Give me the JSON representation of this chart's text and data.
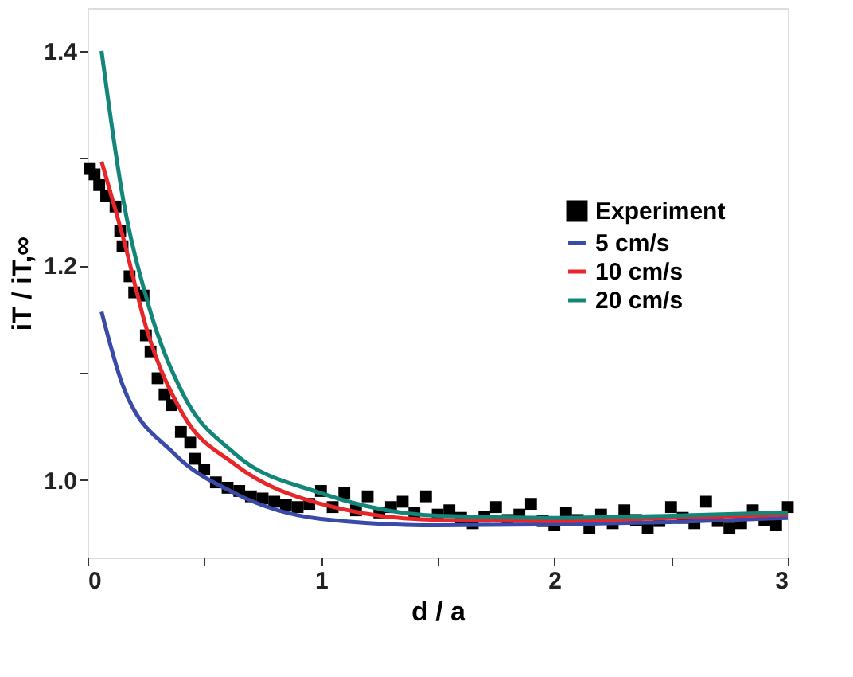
{
  "chart_data": {
    "type": "scatter",
    "xlabel": "d / a",
    "ylabel": "iT / iT,∞",
    "xlim": [
      0,
      3
    ],
    "ylim": [
      0.928,
      1.44
    ],
    "xticks": [
      0,
      {
        "value": 0.5,
        "label": null
      },
      1,
      {
        "value": 1.5,
        "label": null
      },
      2,
      {
        "value": 2.5,
        "label": null
      },
      3
    ],
    "yticks": [
      {
        "value": 1.0,
        "label": "1.0"
      },
      {
        "value": 1.1,
        "label": null
      },
      {
        "value": 1.2,
        "label": "1.2"
      },
      {
        "value": 1.3,
        "label": null
      },
      {
        "value": 1.4,
        "label": "1.4"
      }
    ],
    "grid": false,
    "legend": "right",
    "series": [
      {
        "name": "Experiment",
        "type": "scatter",
        "marker": "square",
        "color": "#000000",
        "x": [
          0.01,
          0.03,
          0.05,
          0.08,
          0.12,
          0.14,
          0.15,
          0.18,
          0.2,
          0.24,
          0.25,
          0.27,
          0.3,
          0.33,
          0.36,
          0.4,
          0.44,
          0.46,
          0.5,
          0.55,
          0.6,
          0.65,
          0.7,
          0.75,
          0.8,
          0.85,
          0.9,
          0.95,
          1.0,
          1.05,
          1.1,
          1.15,
          1.2,
          1.25,
          1.3,
          1.35,
          1.4,
          1.45,
          1.5,
          1.55,
          1.6,
          1.65,
          1.7,
          1.75,
          1.8,
          1.85,
          1.9,
          1.95,
          2.0,
          2.05,
          2.1,
          2.15,
          2.2,
          2.25,
          2.3,
          2.35,
          2.4,
          2.45,
          2.5,
          2.55,
          2.6,
          2.65,
          2.7,
          2.75,
          2.8,
          2.85,
          2.9,
          2.95,
          3.0
        ],
        "values": [
          1.29,
          1.285,
          1.275,
          1.265,
          1.255,
          1.232,
          1.218,
          1.19,
          1.175,
          1.172,
          1.135,
          1.12,
          1.095,
          1.08,
          1.07,
          1.045,
          1.035,
          1.02,
          1.01,
          0.998,
          0.993,
          0.99,
          0.985,
          0.983,
          0.98,
          0.977,
          0.975,
          0.978,
          0.99,
          0.975,
          0.988,
          0.972,
          0.985,
          0.97,
          0.975,
          0.98,
          0.97,
          0.985,
          0.968,
          0.972,
          0.965,
          0.96,
          0.966,
          0.975,
          0.963,
          0.968,
          0.978,
          0.962,
          0.958,
          0.97,
          0.963,
          0.955,
          0.968,
          0.96,
          0.972,
          0.963,
          0.955,
          0.962,
          0.975,
          0.965,
          0.96,
          0.98,
          0.962,
          0.955,
          0.96,
          0.972,
          0.963,
          0.958,
          0.975
        ]
      },
      {
        "name": "5 cm/s",
        "type": "line",
        "color": "#3a4aa8",
        "x": [
          0.06,
          0.15,
          0.37,
          0.63,
          1.0,
          1.5,
          2.0,
          2.5,
          3.0
        ],
        "values": [
          1.157,
          1.089,
          1.025,
          0.988,
          0.964,
          0.958,
          0.959,
          0.961,
          0.965
        ]
      },
      {
        "name": "10 cm/s",
        "type": "line",
        "color": "#e8262a",
        "x": [
          0.06,
          0.15,
          0.26,
          0.41,
          0.63,
          1.0,
          1.5,
          2.0,
          2.5,
          3.0
        ],
        "values": [
          1.297,
          1.228,
          1.136,
          1.061,
          1.015,
          0.978,
          0.963,
          0.962,
          0.965,
          0.968
        ]
      },
      {
        "name": "20 cm/s",
        "type": "line",
        "color": "#13867a",
        "x": [
          0.06,
          0.15,
          0.26,
          0.41,
          0.63,
          1.0,
          1.5,
          2.0,
          2.5,
          3.0
        ],
        "values": [
          1.4,
          1.265,
          1.164,
          1.08,
          1.025,
          0.988,
          0.967,
          0.965,
          0.967,
          0.97
        ]
      }
    ]
  }
}
